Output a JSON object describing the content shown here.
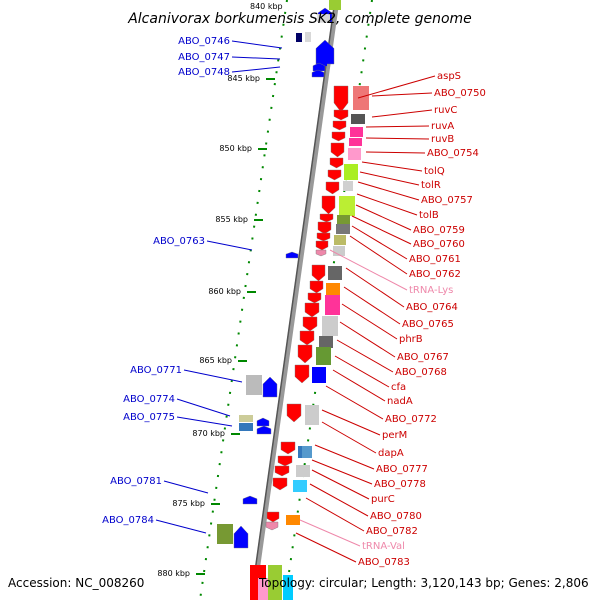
{
  "header": {
    "title": "Alcanivorax borkumensis SK2, complete genome",
    "top_clip": "840 kbp"
  },
  "footer": {
    "accession": "Accession: NC_008260",
    "topology": "Topology: circular; Length: 3,120,143 bp; Genes: 2,806"
  },
  "kbp_ticks": [
    "845 kbp",
    "850 kbp",
    "855 kbp",
    "860 kbp",
    "865 kbp",
    "870 kbp",
    "875 kbp",
    "880 kbp"
  ],
  "left_labels": [
    "ABO_0746",
    "ABO_0747",
    "ABO_0748",
    "ABO_0763",
    "ABO_0771",
    "ABO_0774",
    "ABO_0775",
    "ABO_0781",
    "ABO_0784"
  ],
  "right_labels": [
    "aspS",
    "ABO_0750",
    "ruvC",
    "ruvA",
    "ruvB",
    "ABO_0754",
    "tolQ",
    "tolR",
    "ABO_0757",
    "tolB",
    "ABO_0759",
    "ABO_0760",
    "ABO_0761",
    "ABO_0762",
    "tRNA-Lys",
    "ABO_0764",
    "ABO_0765",
    "phrB",
    "ABO_0767",
    "ABO_0768",
    "cfa",
    "nadA",
    "ABO_0772",
    "perM",
    "dapA",
    "ABO_0777",
    "ABO_0778",
    "purC",
    "ABO_0780",
    "ABO_0782",
    "tRNA-Val",
    "ABO_0783"
  ],
  "colors": {
    "minus_strand_label": "#0000cc",
    "plus_strand_label": "#cc0000",
    "trna_label": "#ee88aa",
    "backbone": "#888888",
    "tick": "#008800"
  }
}
